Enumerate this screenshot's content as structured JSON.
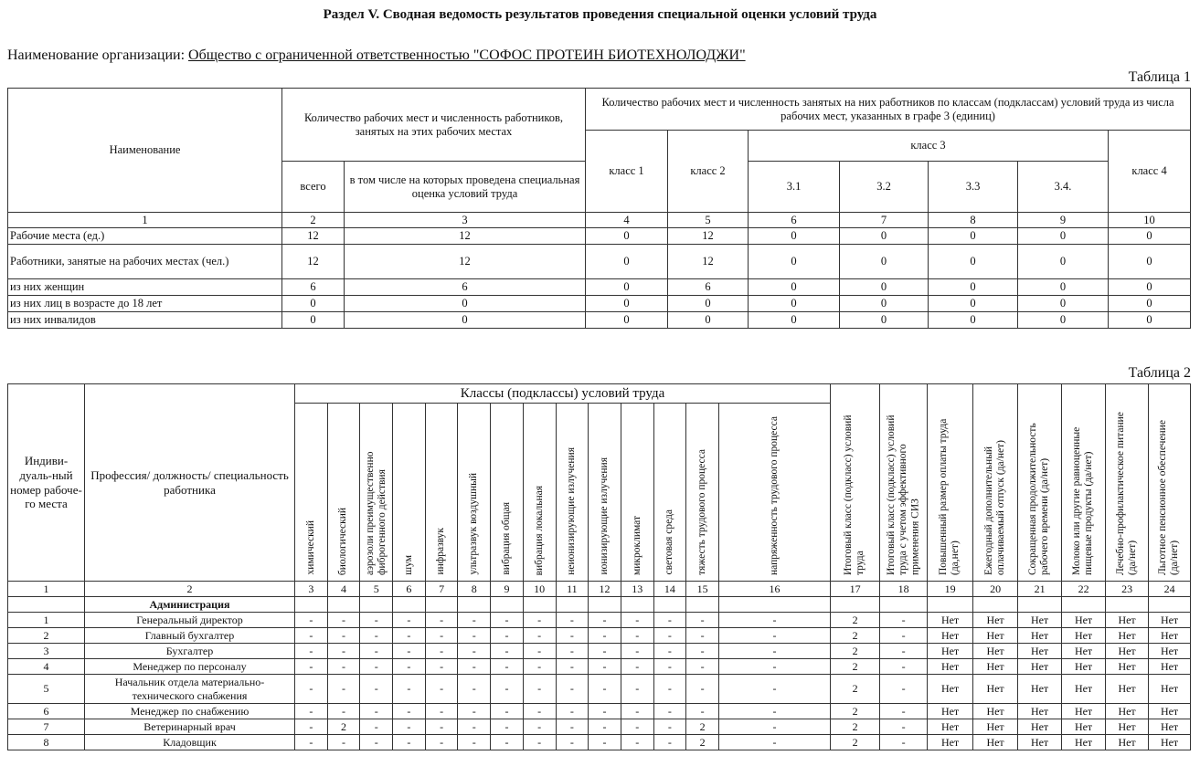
{
  "title": "Раздел V. Сводная ведомость результатов проведения специальной оценки условий труда",
  "org_label": "Наименование организации:",
  "org_name": "Общество с ограниченной ответственностью \"СОФОС ПРОТЕИН БИОТЕХНОЛОДЖИ\"",
  "table1": {
    "label": "Таблица 1",
    "h_name": "Наименование",
    "h_count": "Количество рабочих мест и численность работников, занятых на этих рабочих местах",
    "h_classes": "Количество рабочих мест и численность занятых на них работников по классам (подклассам) условий труда из числа рабочих мест, указанных в графе 3 (единиц)",
    "h_total": "всего",
    "h_assessed": "в том числе на которых проведена специальная оценка условий труда",
    "h_class1": "класс 1",
    "h_class2": "класс 2",
    "h_class3": "класс 3",
    "h_class4": "класс 4",
    "h_31": "3.1",
    "h_32": "3.2",
    "h_33": "3.3",
    "h_34": "3.4.",
    "col_numbers": [
      "1",
      "2",
      "3",
      "4",
      "5",
      "6",
      "7",
      "8",
      "9",
      "10"
    ],
    "rows": [
      [
        "Рабочие места (ед.)",
        "12",
        "12",
        "0",
        "12",
        "0",
        "0",
        "0",
        "0",
        "0"
      ],
      [
        "Работники, занятые на рабочих местах (чел.)",
        "12",
        "12",
        "0",
        "12",
        "0",
        "0",
        "0",
        "0",
        "0"
      ],
      [
        "из них женщин",
        "6",
        "6",
        "0",
        "6",
        "0",
        "0",
        "0",
        "0",
        "0"
      ],
      [
        "из них лиц в возрасте до 18 лет",
        "0",
        "0",
        "0",
        "0",
        "0",
        "0",
        "0",
        "0",
        "0"
      ],
      [
        "из них инвалидов",
        "0",
        "0",
        "0",
        "0",
        "0",
        "0",
        "0",
        "0",
        "0"
      ]
    ]
  },
  "table2": {
    "label": "Таблица 2",
    "h_num": "Индиви-дуаль-ный номер рабоче-го места",
    "h_prof": "Профессия/ должность/ специальность работника",
    "h_classes": "Классы (подклассы) условий труда",
    "factors": [
      "химический",
      "биологический",
      "аэрозоли преимущественно фиброгенного действия",
      "шум",
      "инфразвук",
      "ультразвук воздушный",
      "вибрация общая",
      "вибрация локальная",
      "неионизирующие излучения",
      "ионизирующие излучения",
      "микроклимат",
      "световая среда",
      "тяжесть трудового процесса",
      "напряженность трудового процесса"
    ],
    "extra": [
      "Итоговый класс (подкласс) условий труда",
      "Итоговый класс (подкласс) условий труда с учетом эффективного применения СИЗ",
      "Повышенный размер оплаты труда (да,нет)",
      "Ежегодный дополнительный оплачиваемый отпуск (да/нет)",
      "Сокращенная продолжительность рабочего времени (да/нет)",
      "Молоко или другие равноценные пищевые продукты (да/нет)",
      "Лечебно-профилактическое питание (да/нет)",
      "Льготное пенсионное обеспечение (да/нет)"
    ],
    "col_numbers": [
      "1",
      "2",
      "3",
      "4",
      "5",
      "6",
      "7",
      "8",
      "9",
      "10",
      "11",
      "12",
      "13",
      "14",
      "15",
      "16",
      "17",
      "18",
      "19",
      "20",
      "21",
      "22",
      "23",
      "24"
    ],
    "section": "Администрация",
    "rows": [
      [
        "1",
        "Генеральный директор",
        "-",
        "-",
        "-",
        "-",
        "-",
        "-",
        "-",
        "-",
        "-",
        "-",
        "-",
        "-",
        "-",
        "-",
        "2",
        "-",
        "Нет",
        "Нет",
        "Нет",
        "Нет",
        "Нет",
        "Нет"
      ],
      [
        "2",
        "Главный бухгалтер",
        "-",
        "-",
        "-",
        "-",
        "-",
        "-",
        "-",
        "-",
        "-",
        "-",
        "-",
        "-",
        "-",
        "-",
        "2",
        "-",
        "Нет",
        "Нет",
        "Нет",
        "Нет",
        "Нет",
        "Нет"
      ],
      [
        "3",
        "Бухгалтер",
        "-",
        "-",
        "-",
        "-",
        "-",
        "-",
        "-",
        "-",
        "-",
        "-",
        "-",
        "-",
        "-",
        "-",
        "2",
        "-",
        "Нет",
        "Нет",
        "Нет",
        "Нет",
        "Нет",
        "Нет"
      ],
      [
        "4",
        "Менеджер по персоналу",
        "-",
        "-",
        "-",
        "-",
        "-",
        "-",
        "-",
        "-",
        "-",
        "-",
        "-",
        "-",
        "-",
        "-",
        "2",
        "-",
        "Нет",
        "Нет",
        "Нет",
        "Нет",
        "Нет",
        "Нет"
      ],
      [
        "5",
        "Начальник отдела материально-технического снабжения",
        "-",
        "-",
        "-",
        "-",
        "-",
        "-",
        "-",
        "-",
        "-",
        "-",
        "-",
        "-",
        "-",
        "-",
        "2",
        "-",
        "Нет",
        "Нет",
        "Нет",
        "Нет",
        "Нет",
        "Нет"
      ],
      [
        "6",
        "Менеджер по снабжению",
        "-",
        "-",
        "-",
        "-",
        "-",
        "-",
        "-",
        "-",
        "-",
        "-",
        "-",
        "-",
        "-",
        "-",
        "2",
        "-",
        "Нет",
        "Нет",
        "Нет",
        "Нет",
        "Нет",
        "Нет"
      ],
      [
        "7",
        "Ветеринарный врач",
        "-",
        "2",
        "-",
        "-",
        "-",
        "-",
        "-",
        "-",
        "-",
        "-",
        "-",
        "-",
        "2",
        "-",
        "2",
        "-",
        "Нет",
        "Нет",
        "Нет",
        "Нет",
        "Нет",
        "Нет"
      ],
      [
        "8",
        "Кладовщик",
        "-",
        "-",
        "-",
        "-",
        "-",
        "-",
        "-",
        "-",
        "-",
        "-",
        "-",
        "-",
        "2",
        "-",
        "2",
        "-",
        "Нет",
        "Нет",
        "Нет",
        "Нет",
        "Нет",
        "Нет"
      ]
    ]
  }
}
